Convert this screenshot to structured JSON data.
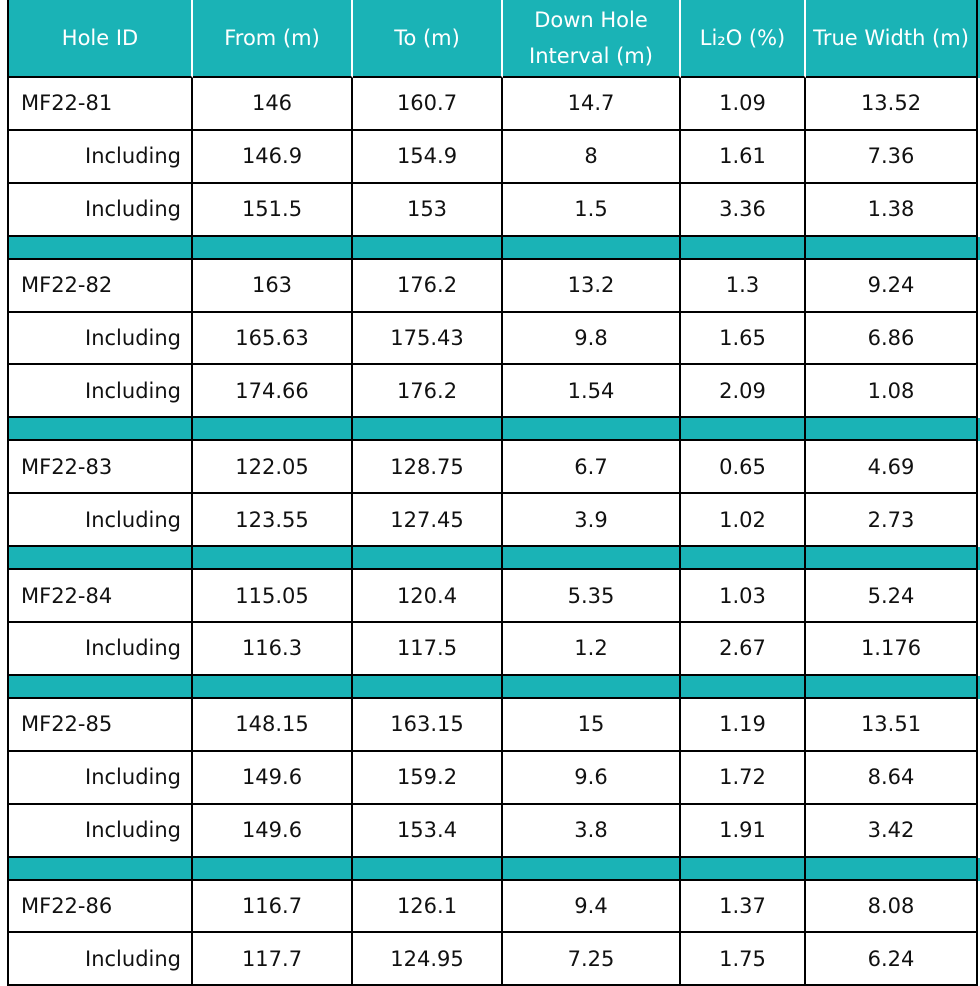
{
  "table": {
    "header": [
      "Hole ID",
      "From (m)",
      "To (m)",
      "Down Hole Interval (m)",
      "Li₂O (%)",
      "True Width (m)"
    ],
    "groups": [
      {
        "rows": [
          [
            "MF22-81",
            "146",
            "160.7",
            "14.7",
            "1.09",
            "13.52"
          ],
          [
            "Including",
            "146.9",
            "154.9",
            "8",
            "1.61",
            "7.36"
          ],
          [
            "Including",
            "151.5",
            "153",
            "1.5",
            "3.36",
            "1.38"
          ]
        ]
      },
      {
        "rows": [
          [
            "MF22-82",
            "163",
            "176.2",
            "13.2",
            "1.3",
            "9.24"
          ],
          [
            "Including",
            "165.63",
            "175.43",
            "9.8",
            "1.65",
            "6.86"
          ],
          [
            "Including",
            "174.66",
            "176.2",
            "1.54",
            "2.09",
            "1.08"
          ]
        ]
      },
      {
        "rows": [
          [
            "MF22-83",
            "122.05",
            "128.75",
            "6.7",
            "0.65",
            "4.69"
          ],
          [
            "Including",
            "123.55",
            "127.45",
            "3.9",
            "1.02",
            "2.73"
          ]
        ]
      },
      {
        "rows": [
          [
            "MF22-84",
            "115.05",
            "120.4",
            "5.35",
            "1.03",
            "5.24"
          ],
          [
            "Including",
            "116.3",
            "117.5",
            "1.2",
            "2.67",
            "1.176"
          ]
        ]
      },
      {
        "rows": [
          [
            "MF22-85",
            "148.15",
            "163.15",
            "15",
            "1.19",
            "13.51"
          ],
          [
            "Including",
            "149.6",
            "159.2",
            "9.6",
            "1.72",
            "8.64"
          ],
          [
            "Including",
            "149.6",
            "153.4",
            "3.8",
            "1.91",
            "3.42"
          ]
        ]
      },
      {
        "rows": [
          [
            "MF22-86",
            "116.7",
            "126.1",
            "9.4",
            "1.37",
            "8.08"
          ],
          [
            "Including",
            "117.7",
            "124.95",
            "7.25",
            "1.75",
            "6.24"
          ]
        ]
      }
    ]
  }
}
